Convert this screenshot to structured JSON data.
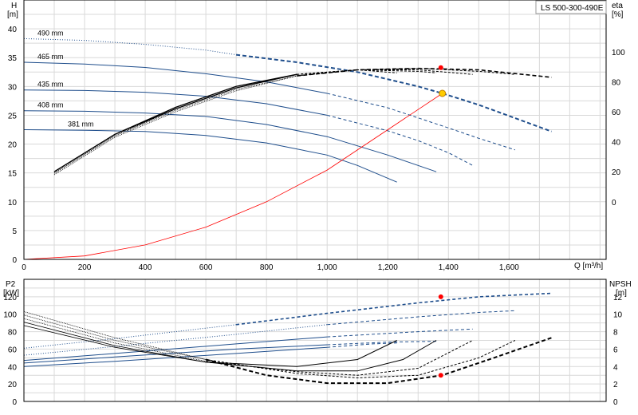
{
  "model_box": "LS 500-300-490E",
  "chart_data": [
    {
      "type": "line",
      "panel": "head_efficiency",
      "left_axis": {
        "label": "H",
        "unit": "[m]",
        "ylim": [
          0,
          45
        ],
        "ticks": [
          0,
          5,
          10,
          15,
          20,
          25,
          30,
          35,
          40
        ]
      },
      "right_axis": {
        "label": "eta",
        "unit": "[%]",
        "ylim": [
          -38.46,
          134.62
        ],
        "ticks": [
          0,
          20,
          40,
          60,
          80,
          100
        ]
      },
      "x_axis": {
        "label": "Q [m³/h]",
        "xlim": [
          0,
          1920
        ],
        "ticks": [
          0,
          200,
          400,
          600,
          800,
          1000,
          1200,
          1400,
          1600
        ],
        "tick_labels": [
          "0",
          "200",
          "400",
          "600",
          "800",
          "1,000",
          "1,200",
          "1,400",
          "1,600"
        ]
      },
      "head_curves": [
        {
          "name": "490 mm",
          "x": [
            0,
            200,
            400,
            600,
            700,
            900,
            1100,
            1300,
            1380,
            1500,
            1740
          ],
          "y": [
            38.3,
            38.0,
            37.3,
            36.3,
            35.5,
            34.2,
            32.5,
            30.0,
            28.8,
            26.8,
            22.2
          ],
          "style": "dotted_then_dashed"
        },
        {
          "name": "465 mm",
          "x": [
            0,
            200,
            400,
            600,
            800,
            1000,
            1200,
            1400,
            1500,
            1620
          ],
          "y": [
            34.2,
            33.9,
            33.3,
            32.2,
            30.8,
            28.8,
            26.3,
            22.8,
            21.0,
            19.0
          ],
          "style": "solid_then_dashed"
        },
        {
          "name": "435 mm",
          "x": [
            0,
            200,
            400,
            600,
            800,
            1000,
            1200,
            1300,
            1400,
            1480
          ],
          "y": [
            29.4,
            29.3,
            29.0,
            28.3,
            27.0,
            25.0,
            22.3,
            20.6,
            18.5,
            16.3
          ],
          "style": "solid_then_dashed"
        },
        {
          "name": "408 mm",
          "x": [
            0,
            200,
            400,
            600,
            800,
            1000,
            1200,
            1360
          ],
          "y": [
            25.8,
            25.7,
            25.4,
            24.8,
            23.4,
            21.3,
            18.1,
            15.2
          ],
          "style": "solid"
        },
        {
          "name": "381 mm",
          "x": [
            0,
            200,
            400,
            600,
            800,
            1000,
            1100,
            1230
          ],
          "y": [
            22.5,
            22.4,
            22.2,
            21.5,
            20.2,
            18.1,
            16.3,
            13.4
          ],
          "style": "solid"
        }
      ],
      "efficiency_curves": [
        {
          "x": [
            100,
            300,
            500,
            700,
            900,
            1100,
            1300,
            1500,
            1740
          ],
          "y": [
            18,
            43,
            60,
            74,
            84,
            88,
            89,
            88,
            83
          ]
        },
        {
          "x": [
            100,
            300,
            500,
            700,
            900,
            1100,
            1300,
            1500,
            1620
          ],
          "y": [
            19,
            44,
            61,
            75,
            84,
            88,
            89,
            87,
            85
          ]
        },
        {
          "x": [
            100,
            300,
            500,
            700,
            900,
            1100,
            1300,
            1480
          ],
          "y": [
            19,
            44,
            62,
            76,
            85,
            88,
            88,
            85
          ]
        },
        {
          "x": [
            100,
            300,
            500,
            700,
            900,
            1100,
            1300,
            1360
          ],
          "y": [
            20,
            45,
            62,
            76,
            85,
            88,
            87,
            86
          ]
        },
        {
          "x": [
            100,
            300,
            500,
            700,
            900,
            1100,
            1230
          ],
          "y": [
            20,
            45,
            63,
            77,
            85,
            88,
            86
          ]
        }
      ],
      "system_curve": {
        "x": [
          0,
          200,
          400,
          600,
          800,
          1000,
          1200,
          1380
        ],
        "y": [
          0,
          0.6,
          2.5,
          5.6,
          10.0,
          15.5,
          22.5,
          28.8
        ],
        "color": "#ff0000"
      },
      "duty_point": {
        "x": 1380,
        "y": 28.8,
        "color": "#ffcc00"
      },
      "bep_point": {
        "x": 1375,
        "eta": 89.5,
        "color": "#ff0000"
      }
    },
    {
      "type": "line",
      "panel": "power_npsh",
      "left_axis": {
        "label": "P2",
        "unit": "[kW]",
        "ylim": [
          0,
          140
        ],
        "ticks": [
          0,
          20,
          40,
          60,
          80,
          100,
          120
        ]
      },
      "right_axis": {
        "label": "NPSH",
        "unit": "[m]",
        "ylim": [
          0,
          14
        ],
        "ticks": [
          0,
          2,
          4,
          6,
          8,
          10,
          12
        ]
      },
      "power_curves": [
        {
          "x": [
            0,
            300,
            700,
            1000,
            1300,
            1500,
            1740
          ],
          "y": [
            61,
            72,
            88,
            101,
            113,
            120,
            124
          ]
        },
        {
          "x": [
            0,
            300,
            700,
            1000,
            1300,
            1500,
            1620
          ],
          "y": [
            53,
            63,
            77,
            88,
            97,
            102,
            104
          ]
        },
        {
          "x": [
            0,
            300,
            700,
            1000,
            1300,
            1480
          ],
          "y": [
            47,
            55,
            66,
            74,
            80,
            83
          ]
        },
        {
          "x": [
            0,
            300,
            700,
            1000,
            1200,
            1360
          ],
          "y": [
            44,
            51,
            60,
            65,
            68,
            69
          ]
        },
        {
          "x": [
            0,
            300,
            700,
            1000,
            1150,
            1230
          ],
          "y": [
            40,
            46,
            55,
            62,
            66,
            67
          ]
        }
      ],
      "npsh_curves": [
        {
          "x": [
            0,
            300,
            600,
            800,
            1000,
            1200,
            1380,
            1550,
            1740
          ],
          "y": [
            10.3,
            7.3,
            4.8,
            3.0,
            2.1,
            2.1,
            3.0,
            5.0,
            7.3
          ]
        },
        {
          "x": [
            0,
            300,
            600,
            900,
            1100,
            1300,
            1500,
            1620
          ],
          "y": [
            9.9,
            7.0,
            4.8,
            3.2,
            2.7,
            3.0,
            5.0,
            7.0
          ]
        },
        {
          "x": [
            0,
            300,
            600,
            900,
            1100,
            1300,
            1480
          ],
          "y": [
            9.5,
            6.7,
            4.6,
            3.4,
            3.0,
            3.8,
            7.0
          ]
        },
        {
          "x": [
            0,
            300,
            600,
            900,
            1100,
            1250,
            1360
          ],
          "y": [
            9.1,
            6.4,
            4.5,
            3.5,
            3.5,
            4.8,
            7.0
          ]
        },
        {
          "x": [
            0,
            300,
            600,
            900,
            1100,
            1230
          ],
          "y": [
            8.7,
            6.2,
            4.5,
            4.0,
            4.8,
            7.0
          ]
        }
      ],
      "power_point": {
        "x": 1375,
        "y": 120,
        "color": "#ff0000"
      },
      "npsh_point": {
        "x": 1375,
        "y": 3.0,
        "color": "#ff0000"
      }
    }
  ]
}
